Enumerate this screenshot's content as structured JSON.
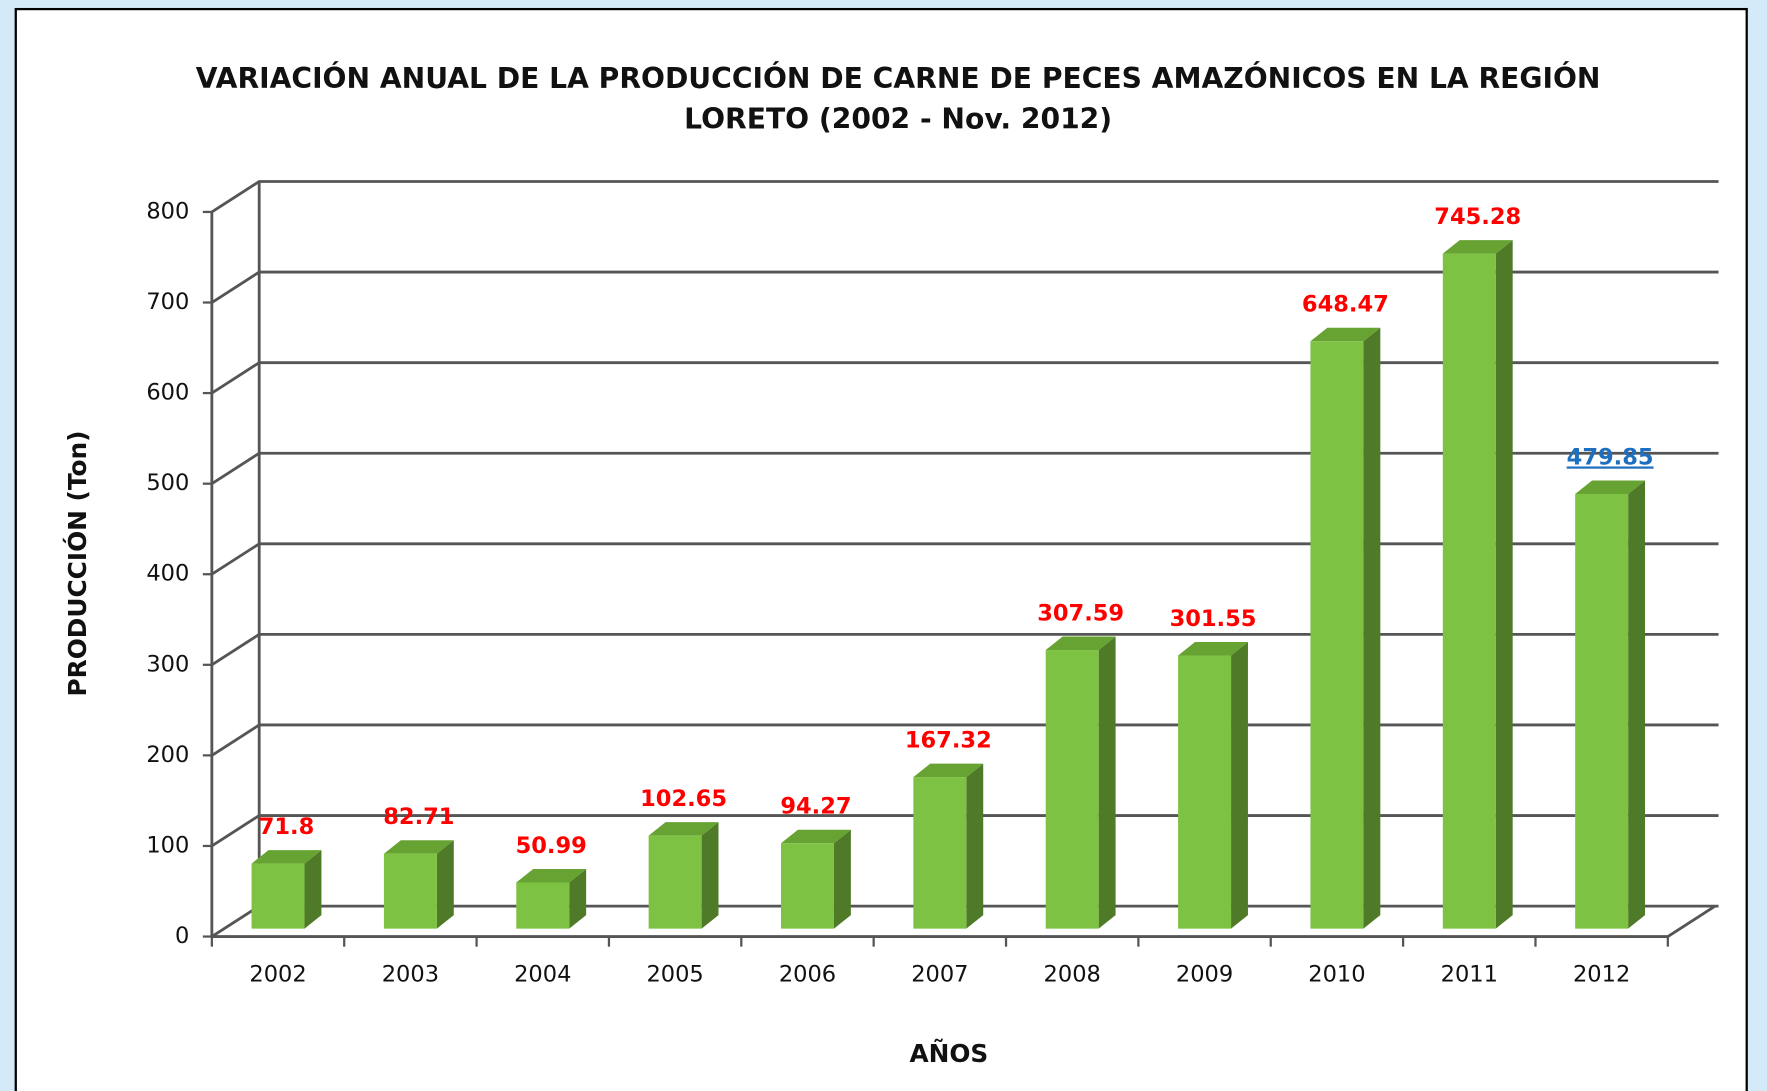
{
  "chart_data": {
    "type": "bar3d",
    "title": [
      "VARIACIÓN ANUAL DE LA PRODUCCIÓN DE CARNE DE PECES AMAZÓNICOS EN LA REGIÓN",
      "LORETO (2002 - Nov.  2012)"
    ],
    "x_label": "AÑOS",
    "y_label": "PRODUCCIÓN (Ton)",
    "categories": [
      "2002",
      "2003",
      "2004",
      "2005",
      "2006",
      "2007",
      "2008",
      "2009",
      "2010",
      "2011",
      "2012"
    ],
    "values": [
      71.8,
      82.71,
      50.99,
      102.65,
      94.27,
      167.32,
      307.59,
      301.55,
      648.47,
      745.28,
      479.85
    ],
    "label_colors": [
      "#ff0000",
      "#ff0000",
      "#ff0000",
      "#ff0000",
      "#ff0000",
      "#ff0000",
      "#ff0000",
      "#ff0000",
      "#ff0000",
      "#ff0000",
      "#1f6fc0"
    ],
    "color": "#7dc242",
    "side_color": "#4f7a28",
    "top_color": "#67a333",
    "ylim": [
      0,
      800
    ],
    "yticks": [
      0,
      100,
      200,
      300,
      400,
      500,
      600,
      700,
      800
    ],
    "grid": true
  }
}
